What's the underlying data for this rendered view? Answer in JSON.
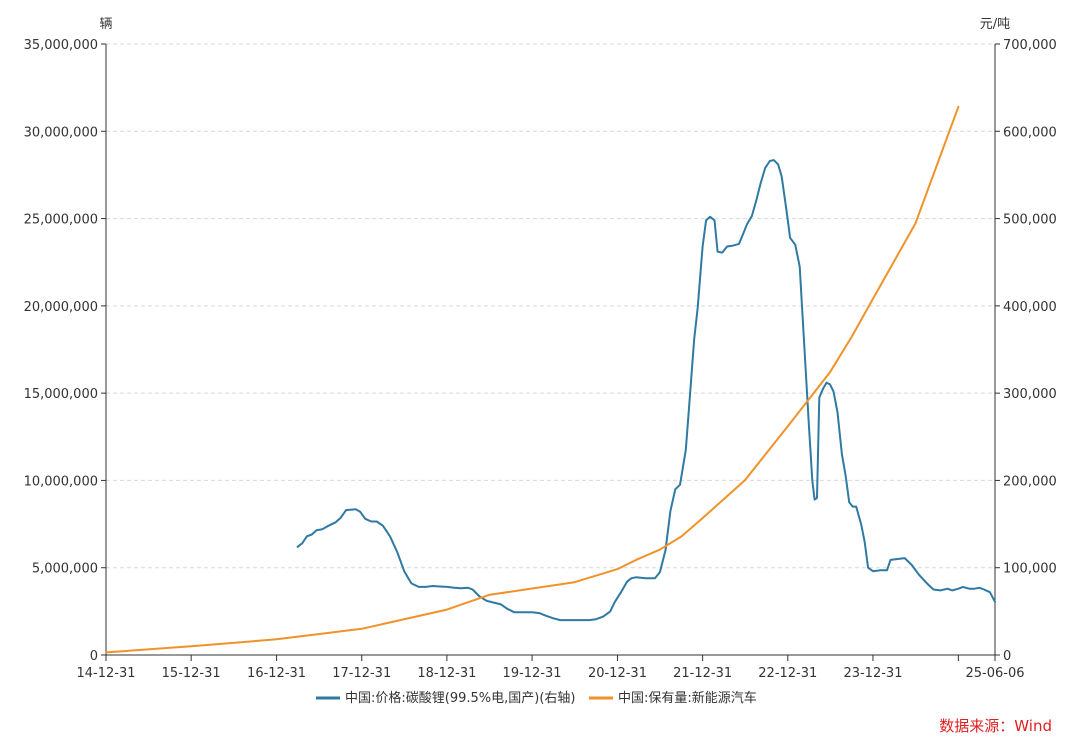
{
  "chart_data": {
    "type": "line",
    "left_unit": "辆",
    "right_unit": "元/吨",
    "source": "数据来源：Wind",
    "grid": true,
    "legend_position": "bottom",
    "x_range": [
      "2014-12-31",
      "2025-06-06"
    ],
    "x_tick_labels": [
      {
        "date": "2014-12-31",
        "label": "14-12-31"
      },
      {
        "date": "2015-12-31",
        "label": "15-12-31"
      },
      {
        "date": "2016-12-31",
        "label": "16-12-31"
      },
      {
        "date": "2017-12-31",
        "label": "17-12-31"
      },
      {
        "date": "2018-12-31",
        "label": "18-12-31"
      },
      {
        "date": "2019-12-31",
        "label": "19-12-31"
      },
      {
        "date": "2020-12-31",
        "label": "20-12-31"
      },
      {
        "date": "2021-12-31",
        "label": "21-12-31"
      },
      {
        "date": "2022-12-31",
        "label": "22-12-31"
      },
      {
        "date": "2023-12-31",
        "label": "23-12-31"
      },
      {
        "date": "2025-06-06",
        "label": "25-06-06"
      }
    ],
    "y_left": {
      "ylim": [
        0,
        35000000
      ],
      "ticks": [
        0,
        5000000,
        10000000,
        15000000,
        20000000,
        25000000,
        30000000,
        35000000
      ],
      "tick_labels": [
        "0",
        "5,000,000",
        "10,000,000",
        "15,000,000",
        "20,000,000",
        "25,000,000",
        "30,000,000",
        "35,000,000"
      ]
    },
    "y_right": {
      "ylim": [
        0,
        700000
      ],
      "ticks": [
        0,
        100000,
        200000,
        300000,
        400000,
        500000,
        600000,
        700000
      ],
      "tick_labels": [
        "0",
        "100,000",
        "200,000",
        "300,000",
        "400,000",
        "500,000",
        "600,000",
        "700,000"
      ]
    },
    "series": [
      {
        "name": "中国:价格:碳酸锂(99.5%电,国产)(右轴)",
        "axis": "right",
        "color": "#2e7aa3",
        "points": [
          [
            "2017-03-31",
            124000
          ],
          [
            "2017-04-20",
            128000
          ],
          [
            "2017-05-10",
            136000
          ],
          [
            "2017-05-31",
            138000
          ],
          [
            "2017-06-20",
            143000
          ],
          [
            "2017-07-15",
            144000
          ],
          [
            "2017-08-10",
            148000
          ],
          [
            "2017-09-10",
            152000
          ],
          [
            "2017-10-01",
            157000
          ],
          [
            "2017-10-25",
            166000
          ],
          [
            "2017-12-05",
            167000
          ],
          [
            "2017-12-25",
            164000
          ],
          [
            "2018-01-15",
            156000
          ],
          [
            "2018-02-10",
            153000
          ],
          [
            "2018-03-05",
            153000
          ],
          [
            "2018-04-01",
            148000
          ],
          [
            "2018-05-01",
            136000
          ],
          [
            "2018-06-01",
            118000
          ],
          [
            "2018-07-01",
            96000
          ],
          [
            "2018-08-01",
            82000
          ],
          [
            "2018-09-01",
            78000
          ],
          [
            "2018-10-01",
            78000
          ],
          [
            "2018-11-01",
            79000
          ],
          [
            "2018-12-01",
            78500
          ],
          [
            "2019-01-01",
            78000
          ],
          [
            "2019-02-01",
            77000
          ],
          [
            "2019-03-01",
            76500
          ],
          [
            "2019-04-01",
            77000
          ],
          [
            "2019-04-20",
            75000
          ],
          [
            "2019-05-20",
            67000
          ],
          [
            "2019-06-20",
            62000
          ],
          [
            "2019-07-20",
            60000
          ],
          [
            "2019-08-20",
            58000
          ],
          [
            "2019-09-15",
            53000
          ],
          [
            "2019-10-15",
            49000
          ],
          [
            "2019-11-15",
            49000
          ],
          [
            "2019-12-31",
            49000
          ],
          [
            "2020-01-31",
            48000
          ],
          [
            "2020-02-28",
            45000
          ],
          [
            "2020-03-31",
            42000
          ],
          [
            "2020-04-30",
            40000
          ],
          [
            "2020-06-30",
            40000
          ],
          [
            "2020-08-31",
            40000
          ],
          [
            "2020-09-30",
            41000
          ],
          [
            "2020-10-31",
            44000
          ],
          [
            "2020-11-30",
            50000
          ],
          [
            "2020-12-20",
            61000
          ],
          [
            "2021-01-15",
            72000
          ],
          [
            "2021-02-10",
            84000
          ],
          [
            "2021-03-01",
            88000
          ],
          [
            "2021-03-20",
            89000
          ],
          [
            "2021-05-01",
            88000
          ],
          [
            "2021-06-10",
            88000
          ],
          [
            "2021-07-01",
            95000
          ],
          [
            "2021-07-25",
            120000
          ],
          [
            "2021-08-15",
            165000
          ],
          [
            "2021-09-05",
            190000
          ],
          [
            "2021-09-25",
            195000
          ],
          [
            "2021-10-20",
            235000
          ],
          [
            "2021-11-05",
            292000
          ],
          [
            "2021-11-25",
            362000
          ],
          [
            "2021-12-10",
            398000
          ],
          [
            "2021-12-31",
            468000
          ],
          [
            "2022-01-15",
            498000
          ],
          [
            "2022-02-01",
            502000
          ],
          [
            "2022-02-20",
            498000
          ],
          [
            "2022-03-05",
            462000
          ],
          [
            "2022-03-25",
            461000
          ],
          [
            "2022-04-15",
            468000
          ],
          [
            "2022-05-10",
            469000
          ],
          [
            "2022-06-05",
            471000
          ],
          [
            "2022-06-25",
            484000
          ],
          [
            "2022-07-10",
            494000
          ],
          [
            "2022-07-30",
            503000
          ],
          [
            "2022-08-20",
            523000
          ],
          [
            "2022-09-05",
            540000
          ],
          [
            "2022-09-25",
            558000
          ],
          [
            "2022-10-15",
            566000
          ],
          [
            "2022-11-01",
            567000
          ],
          [
            "2022-11-20",
            562000
          ],
          [
            "2022-12-05",
            548000
          ],
          [
            "2022-12-25",
            510000
          ],
          [
            "2023-01-10",
            478000
          ],
          [
            "2023-02-01",
            470000
          ],
          [
            "2023-02-20",
            445000
          ],
          [
            "2023-03-10",
            362000
          ],
          [
            "2023-03-31",
            265000
          ],
          [
            "2023-04-15",
            200000
          ],
          [
            "2023-04-25",
            178000
          ],
          [
            "2023-05-05",
            180000
          ],
          [
            "2023-05-15",
            295000
          ],
          [
            "2023-05-31",
            305000
          ],
          [
            "2023-06-15",
            312000
          ],
          [
            "2023-06-30",
            310000
          ],
          [
            "2023-07-15",
            302000
          ],
          [
            "2023-08-01",
            278000
          ],
          [
            "2023-08-20",
            230000
          ],
          [
            "2023-09-05",
            205000
          ],
          [
            "2023-09-20",
            175000
          ],
          [
            "2023-10-05",
            170000
          ],
          [
            "2023-10-20",
            170000
          ],
          [
            "2023-11-10",
            150000
          ],
          [
            "2023-11-25",
            130000
          ],
          [
            "2023-12-10",
            100000
          ],
          [
            "2023-12-31",
            96000
          ],
          [
            "2024-01-31",
            97000
          ],
          [
            "2024-02-29",
            97000
          ],
          [
            "2024-03-15",
            109000
          ],
          [
            "2024-04-15",
            110000
          ],
          [
            "2024-05-15",
            111000
          ],
          [
            "2024-06-15",
            103000
          ],
          [
            "2024-07-15",
            92000
          ],
          [
            "2024-08-15",
            83000
          ],
          [
            "2024-09-15",
            75000
          ],
          [
            "2024-10-15",
            74000
          ],
          [
            "2024-11-15",
            76000
          ],
          [
            "2024-12-05",
            74000
          ],
          [
            "2024-12-31",
            76000
          ],
          [
            "2025-01-20",
            78000
          ],
          [
            "2025-02-15",
            76000
          ],
          [
            "2025-03-10",
            76000
          ],
          [
            "2025-04-01",
            77000
          ],
          [
            "2025-04-20",
            75000
          ],
          [
            "2025-05-15",
            72000
          ],
          [
            "2025-06-06",
            61000
          ]
        ]
      },
      {
        "name": "中国:保有量:新能源汽车",
        "axis": "left",
        "color": "#f0922a",
        "points": [
          [
            "2014-12-31",
            150000
          ],
          [
            "2015-12-31",
            500000
          ],
          [
            "2016-12-31",
            900000
          ],
          [
            "2017-12-31",
            1500000
          ],
          [
            "2018-12-31",
            2600000
          ],
          [
            "2019-06-30",
            3440000
          ],
          [
            "2019-12-31",
            3810000
          ],
          [
            "2020-06-30",
            4170000
          ],
          [
            "2020-12-31",
            4920000
          ],
          [
            "2021-03-31",
            5510000
          ],
          [
            "2021-06-30",
            6030000
          ],
          [
            "2021-09-30",
            6780000
          ],
          [
            "2021-12-31",
            7840000
          ],
          [
            "2022-06-30",
            10010000
          ],
          [
            "2022-12-31",
            13100000
          ],
          [
            "2023-06-30",
            16200000
          ],
          [
            "2023-09-30",
            18210000
          ],
          [
            "2023-12-31",
            20410000
          ],
          [
            "2024-06-30",
            24720000
          ],
          [
            "2024-12-31",
            31400000
          ]
        ]
      }
    ]
  }
}
